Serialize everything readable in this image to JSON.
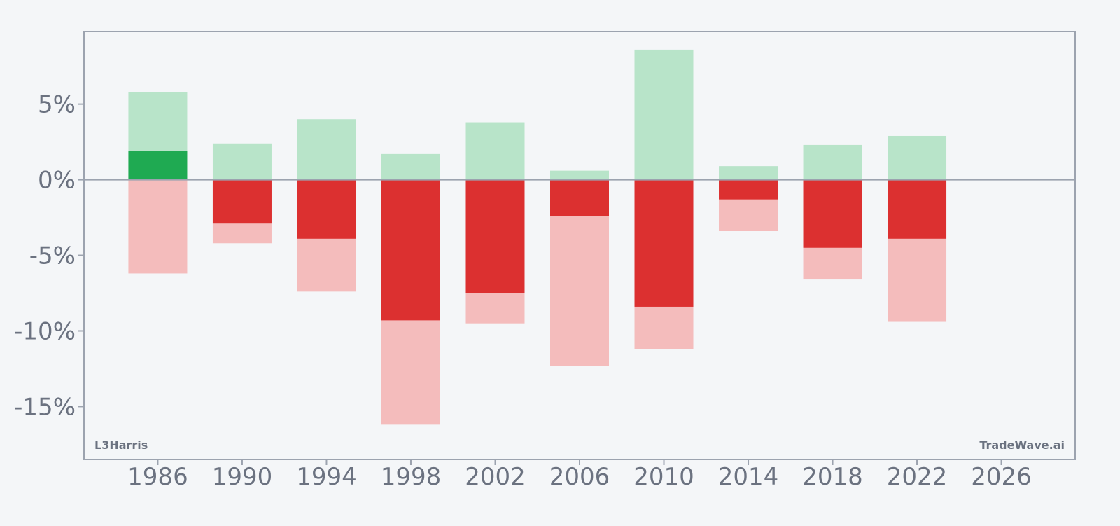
{
  "chart_data": {
    "type": "bar",
    "stacked_ranges": true,
    "x": [
      1986,
      1990,
      1994,
      1998,
      2002,
      2006,
      2010,
      2014,
      2018,
      2022
    ],
    "xlim": [
      1982.5,
      2029.5
    ],
    "ylim": [
      -18.5,
      9.8
    ],
    "x_ticks": [
      1986,
      1990,
      1994,
      1998,
      2002,
      2006,
      2010,
      2014,
      2018,
      2022,
      2026
    ],
    "y_ticks": [
      5,
      0,
      -5,
      -10,
      -15
    ],
    "y_tick_format": "percent",
    "grid": false,
    "series": [
      {
        "values": [
          5.8,
          2.4,
          4.0,
          1.7,
          3.8,
          0.6,
          8.6,
          0.9,
          2.3,
          2.9
        ]
      },
      {
        "values": [
          1.9,
          0,
          0,
          0,
          0,
          0,
          0,
          0,
          0,
          0
        ]
      },
      {
        "values": [
          -6.2,
          -4.2,
          -7.4,
          -16.2,
          -9.5,
          -12.3,
          -11.2,
          -3.4,
          -6.6,
          -9.4
        ]
      },
      {
        "values": [
          0,
          -2.9,
          -3.9,
          -9.3,
          -7.5,
          -2.4,
          -8.4,
          -1.3,
          -4.5,
          -3.9
        ]
      }
    ],
    "colors": {
      "range_up": "#b8e4c9",
      "value_up": "#1faa52",
      "range_down": "#f4bcbc",
      "value_down": "#dc3030",
      "axis": "#9ca3af",
      "text": "#6b7280"
    },
    "annotations": {
      "bottom_left": "L3Harris",
      "bottom_right": "TradeWave.ai"
    }
  }
}
